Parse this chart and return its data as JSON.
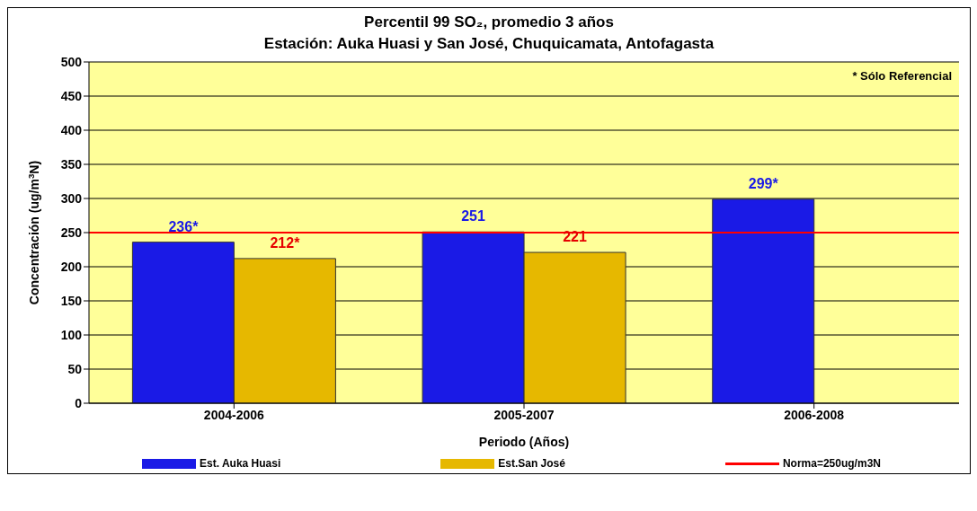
{
  "chart_data": {
    "type": "bar",
    "title": "Percentil 99 SO₂, promedio 3 años",
    "subtitle": "Estación: Auka Huasi y San José, Chuquicamata, Antofagasta",
    "xlabel": "Periodo (Años)",
    "ylabel": "Concentración (ug/m$^{3}$N)",
    "annotations": [
      "* Sólo Referencial"
    ],
    "categories": [
      "2004-2006",
      "2005-2007",
      "2006-2008"
    ],
    "series": [
      {
        "name": "Est. Auka Huasi",
        "color": "#1a1ae6",
        "values": [
          236,
          251,
          299
        ],
        "value_labels": [
          "236*",
          "251",
          "299*"
        ]
      },
      {
        "name": "Est.San José",
        "color": "#e6b800",
        "values": [
          212,
          221,
          null
        ],
        "value_labels": [
          "212*",
          "221",
          null
        ]
      }
    ],
    "ref_lines": [
      {
        "axis": "y",
        "value": 250,
        "label": "Norma=250ug/m3N",
        "color": "#ff0000"
      }
    ],
    "ylim": [
      0,
      500
    ],
    "yticks": [
      0,
      50,
      100,
      150,
      200,
      250,
      300,
      350,
      400,
      450,
      500
    ],
    "grid": "y",
    "legend": "bottom"
  }
}
